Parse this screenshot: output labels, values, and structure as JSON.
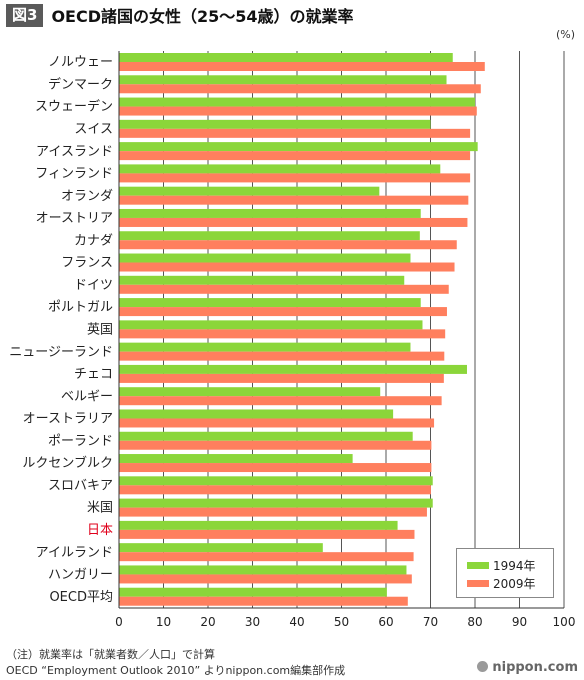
{
  "header": {
    "figure_label": "図3",
    "title": "OECD諸国の女性（25〜54歳）の就業率",
    "unit": "(%)"
  },
  "chart_data": {
    "type": "bar",
    "orientation": "horizontal",
    "categories": [
      "ノルウェー",
      "デンマーク",
      "スウェーデン",
      "スイス",
      "アイスランド",
      "フィンランド",
      "オランダ",
      "オーストリア",
      "カナダ",
      "フランス",
      "ドイツ",
      "ポルトガル",
      "英国",
      "ニュージーランド",
      "チェコ",
      "ベルギー",
      "オーストラリア",
      "ポーランド",
      "ルクセンブルク",
      "スロバキア",
      "米国",
      "日本",
      "アイルランド",
      "ハンガリー",
      "OECD平均"
    ],
    "highlight_category": "日本",
    "highlight_color": "#e0001b",
    "series": [
      {
        "name": "1994年",
        "color": "#8bd63a",
        "values": [
          75.0,
          73.6,
          80.0,
          70.0,
          80.6,
          72.2,
          58.5,
          67.8,
          67.6,
          65.5,
          64.1,
          67.8,
          68.2,
          65.5,
          78.2,
          58.7,
          61.6,
          66.0,
          52.5,
          70.5,
          70.5,
          62.6,
          45.8,
          64.6,
          60.2
        ]
      },
      {
        "name": "2009年",
        "color": "#ff7f5e",
        "values": [
          82.2,
          81.3,
          80.4,
          78.9,
          78.9,
          78.9,
          78.5,
          78.3,
          75.9,
          75.4,
          74.1,
          73.7,
          73.3,
          73.1,
          73.0,
          72.5,
          70.8,
          70.2,
          70.2,
          70.1,
          69.2,
          66.4,
          66.2,
          65.8,
          64.9
        ]
      }
    ],
    "xlim": [
      0,
      100
    ],
    "xticks": [
      0,
      10,
      20,
      30,
      40,
      50,
      60,
      70,
      80,
      90,
      100
    ],
    "grid": true,
    "legend_position": "bottom-right"
  },
  "notes": {
    "line1": "（注）就業率は「就業者数／人口」で計算",
    "line2": "OECD “Employment Outlook 2010” よりnippon.com編集部作成"
  },
  "brand": "nippon.com"
}
